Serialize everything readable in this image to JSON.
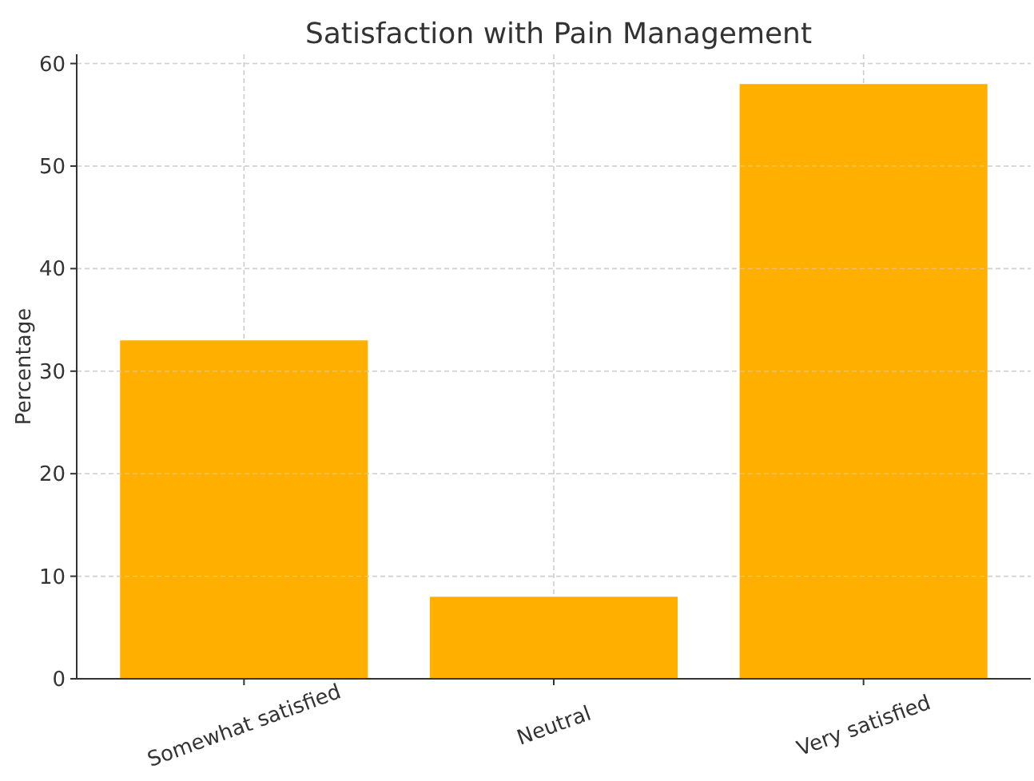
{
  "chart_data": {
    "type": "bar",
    "title": "Satisfaction with Pain Management",
    "ylabel": "Percentage",
    "categories": [
      "Somewhat satisfied",
      "Neutral",
      "Very satisfied"
    ],
    "values": [
      33,
      8,
      58
    ],
    "color": "#ffaf00",
    "ylim": [
      0,
      60.9
    ],
    "yticks": [
      0,
      10,
      20,
      30,
      40,
      50,
      60
    ],
    "grid": true
  }
}
